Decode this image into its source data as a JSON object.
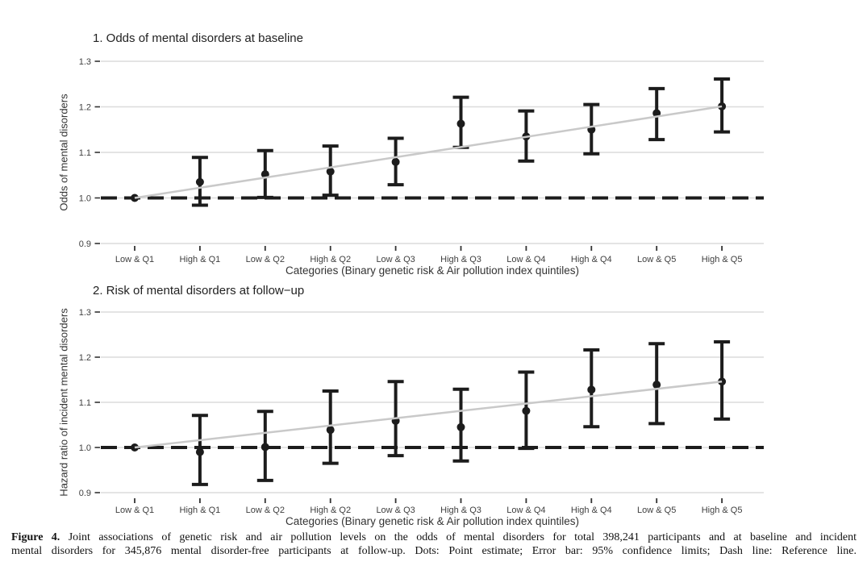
{
  "figure": {
    "caption": {
      "label": "Figure 4.",
      "line1": "Joint associations of genetic risk and air pollution levels on the odds of mental disorders for total 398,241 participants and at baseline and incident",
      "line2": "mental disorders for 345,876 mental disorder-free participants at follow-up. Dots: Point estimate; Error bar: 95% confidence limits; Dash line: Reference line."
    }
  },
  "colors": {
    "point": "#1c1c1c",
    "error_bar": "#1c1c1c",
    "reference_line": "#1c1c1c",
    "gridline": "#dcdcdc",
    "trend_line": "#c9c9c9",
    "axis_text": "#404040",
    "tick": "#333333"
  },
  "chart_data": [
    {
      "type": "scatter",
      "title": "1. Odds of mental disorders at baseline",
      "xlabel": "Categories (Binary genetic risk & Air pollution index quintiles)",
      "ylabel": "Odds of mental disorders",
      "categories": [
        "Low & Q1",
        "High & Q1",
        "Low & Q2",
        "High & Q2",
        "Low & Q3",
        "High & Q3",
        "Low & Q4",
        "High & Q4",
        "Low & Q5",
        "High & Q5"
      ],
      "y_ticks": [
        0.9,
        1.0,
        1.1,
        1.2,
        1.3
      ],
      "ylim": [
        0.9,
        1.3
      ],
      "grid": "horizontal-only",
      "legend": "none",
      "reference_line": 1.0,
      "series": [
        {
          "name": "Point estimate",
          "values": [
            1.0,
            1.035,
            1.052,
            1.058,
            1.079,
            1.163,
            1.135,
            1.15,
            1.186,
            1.201
          ]
        },
        {
          "name": "95% CI lower",
          "values": [
            1.0,
            0.984,
            1.001,
            1.006,
            1.029,
            1.111,
            1.081,
            1.097,
            1.128,
            1.145
          ]
        },
        {
          "name": "95% CI upper",
          "values": [
            1.0,
            1.089,
            1.104,
            1.114,
            1.131,
            1.221,
            1.191,
            1.205,
            1.24,
            1.261
          ]
        }
      ],
      "trend_line": {
        "from": 1.0,
        "to": 1.201
      }
    },
    {
      "type": "scatter",
      "title": "2. Risk of mental disorders at follow−up",
      "xlabel": "Categories (Binary genetic risk & Air pollution index quintiles)",
      "ylabel": "Hazard ratio of incident mental disorders",
      "categories": [
        "Low & Q1",
        "High & Q1",
        "Low & Q2",
        "High & Q2",
        "Low & Q3",
        "High & Q3",
        "Low & Q4",
        "High & Q4",
        "Low & Q5",
        "High & Q5"
      ],
      "y_ticks": [
        0.9,
        1.0,
        1.1,
        1.2,
        1.3
      ],
      "ylim": [
        0.9,
        1.3
      ],
      "grid": "horizontal-only",
      "legend": "none",
      "reference_line": 1.0,
      "series": [
        {
          "name": "Point estimate",
          "values": [
            1.0,
            0.99,
            1.001,
            1.039,
            1.059,
            1.045,
            1.081,
            1.128,
            1.139,
            1.146
          ]
        },
        {
          "name": "95% CI lower",
          "values": [
            1.0,
            0.918,
            0.927,
            0.965,
            0.982,
            0.97,
            0.998,
            1.046,
            1.053,
            1.063
          ]
        },
        {
          "name": "95% CI upper",
          "values": [
            1.0,
            1.071,
            1.08,
            1.125,
            1.146,
            1.129,
            1.167,
            1.216,
            1.23,
            1.234
          ]
        }
      ],
      "trend_line": {
        "from": 1.0,
        "to": 1.146
      }
    }
  ]
}
